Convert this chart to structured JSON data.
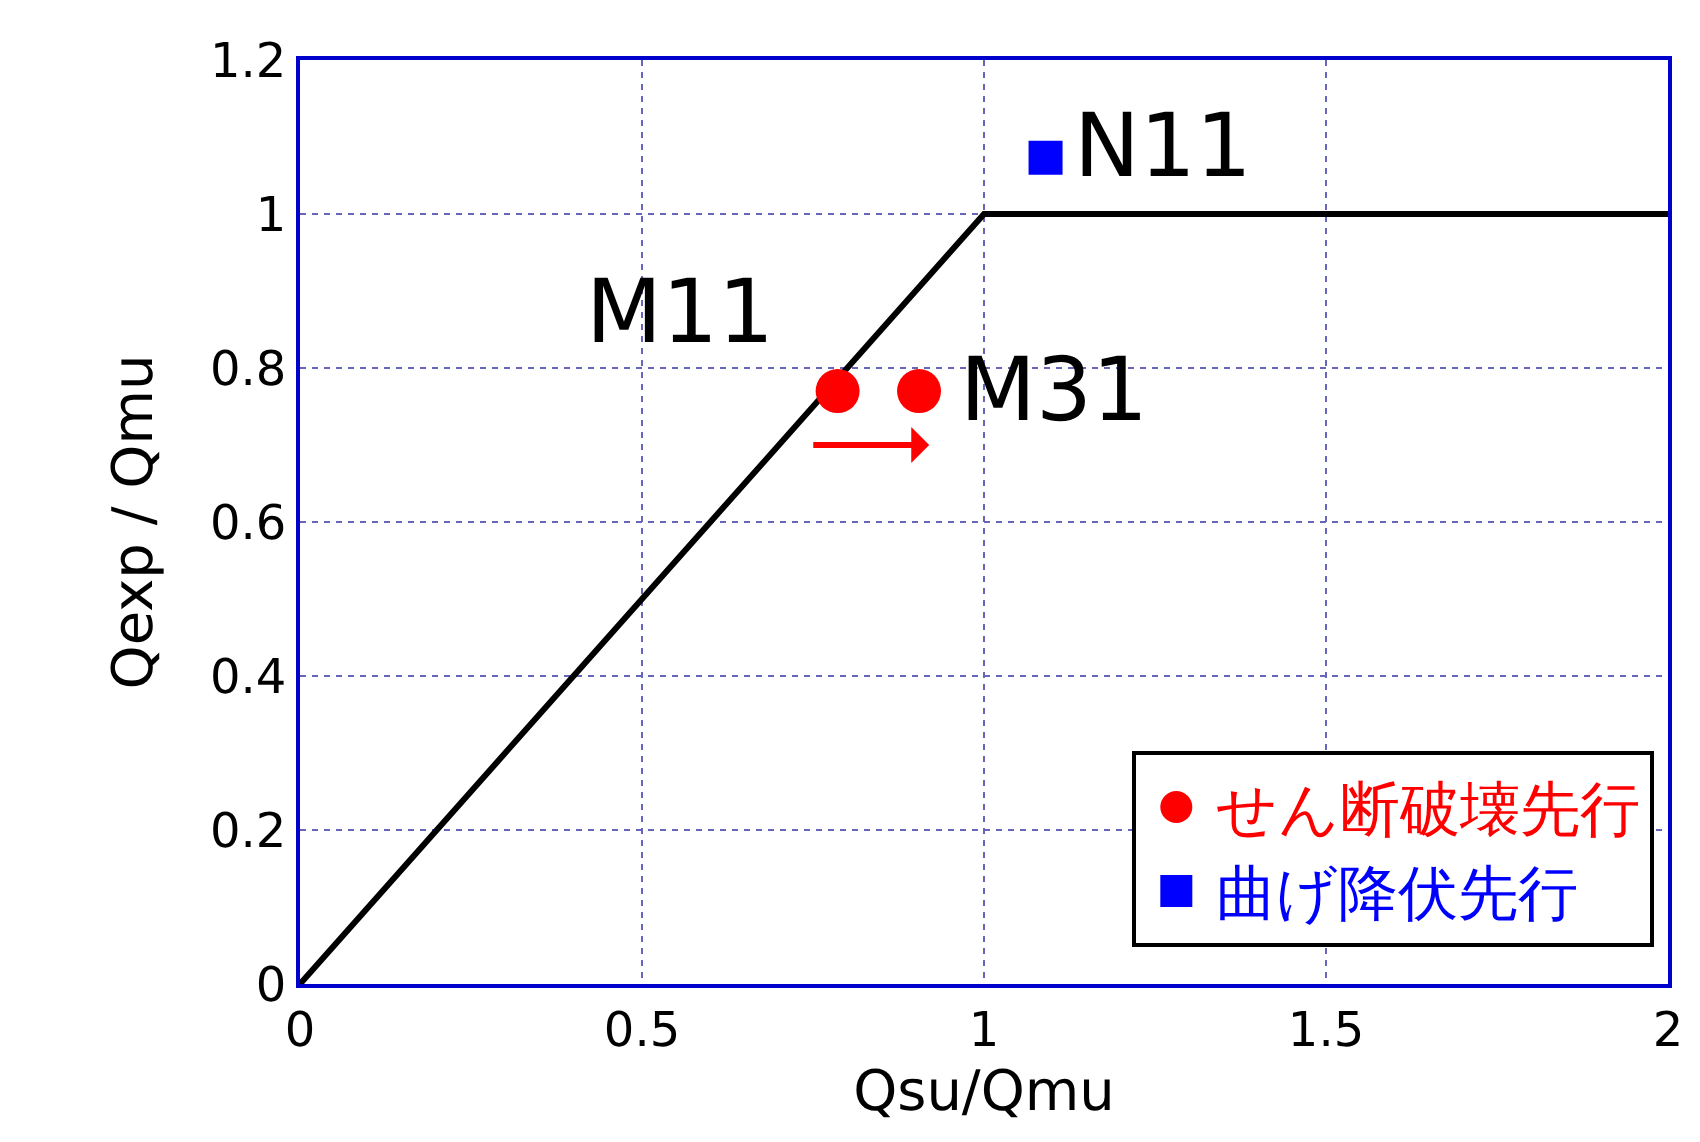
{
  "chart_data": {
    "type": "scatter",
    "xlabel": "Qsu/Qmu",
    "ylabel": "Qexp / Qmu",
    "xlim": [
      0,
      2
    ],
    "xticks": [
      0,
      0.5,
      1,
      1.5,
      2
    ],
    "ylim": [
      0,
      1.2
    ],
    "yticks": [
      0,
      0.2,
      0.4,
      0.6,
      0.8,
      1,
      1.2
    ],
    "grid": true,
    "legend": "bottom right",
    "series": [
      {
        "type": "line",
        "color": "#000000",
        "x": [
          0,
          1,
          2
        ],
        "values": [
          0,
          1,
          1
        ],
        "marker": "none",
        "line_style": "solid"
      },
      {
        "name": "せん断破壊先行",
        "color": "#ff0000",
        "x": [
          0.786,
          0.905
        ],
        "values": [
          0.77,
          0.77
        ],
        "marker": "circle"
      },
      {
        "name": "曲げ降伏先行",
        "color": "#0000ff",
        "x": [
          1.09
        ],
        "values": [
          1.073
        ],
        "marker": "square"
      }
    ],
    "annotations": [
      {
        "text": "M11",
        "x": 0.786,
        "y": 0.77
      },
      {
        "text": "M31",
        "x": 0.905,
        "y": 0.77
      },
      {
        "text": "N11",
        "x": 1.09,
        "y": 1.073
      }
    ]
  }
}
